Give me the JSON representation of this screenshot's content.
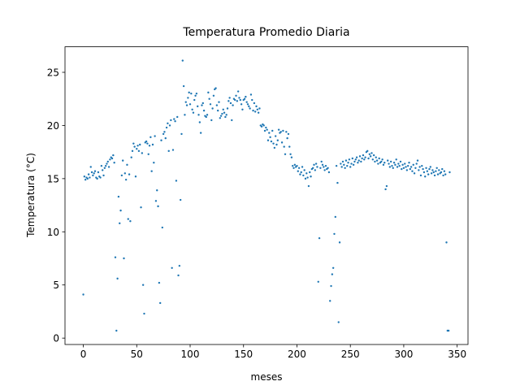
{
  "chart_data": {
    "type": "scatter",
    "title": "Temperatura Promedio Diaria",
    "xlabel": "meses",
    "ylabel": "Temperatura (°C)",
    "color": "#1f77b4",
    "xlim": [
      -17.15,
      360.15
    ],
    "ylim": [
      -0.6,
      27.4
    ],
    "xticks": [
      0,
      50,
      100,
      150,
      200,
      250,
      300,
      350
    ],
    "yticks": [
      0,
      5,
      10,
      15,
      20,
      25
    ],
    "x": [
      0,
      1,
      2,
      3,
      4,
      5,
      6,
      7,
      8,
      9,
      10,
      11,
      12,
      13,
      14,
      15,
      16,
      17,
      18,
      19,
      20,
      21,
      22,
      23,
      24,
      25,
      26,
      27,
      28,
      29,
      30,
      31,
      32,
      33,
      34,
      35,
      36,
      37,
      38,
      39,
      40,
      41,
      42,
      43,
      44,
      45,
      46,
      47,
      48,
      49,
      50,
      51,
      52,
      53,
      54,
      55,
      56,
      57,
      58,
      59,
      60,
      61,
      62,
      63,
      64,
      65,
      66,
      67,
      68,
      69,
      70,
      71,
      72,
      73,
      74,
      75,
      76,
      77,
      78,
      79,
      80,
      81,
      82,
      83,
      84,
      85,
      86,
      87,
      88,
      89,
      90,
      91,
      92,
      93,
      94,
      95,
      96,
      97,
      98,
      99,
      100,
      101,
      102,
      103,
      104,
      105,
      106,
      107,
      108,
      109,
      110,
      111,
      112,
      113,
      114,
      115,
      116,
      117,
      118,
      119,
      120,
      121,
      122,
      123,
      124,
      125,
      126,
      127,
      128,
      129,
      130,
      131,
      132,
      133,
      134,
      135,
      136,
      137,
      138,
      139,
      140,
      141,
      142,
      143,
      144,
      145,
      146,
      147,
      148,
      149,
      150,
      151,
      152,
      153,
      154,
      155,
      156,
      157,
      158,
      159,
      160,
      161,
      162,
      163,
      164,
      165,
      166,
      167,
      168,
      169,
      170,
      171,
      172,
      173,
      174,
      175,
      176,
      177,
      178,
      179,
      180,
      181,
      182,
      183,
      184,
      185,
      186,
      187,
      188,
      189,
      190,
      191,
      192,
      193,
      194,
      195,
      196,
      197,
      198,
      199,
      200,
      201,
      202,
      203,
      204,
      205,
      206,
      207,
      208,
      209,
      210,
      211,
      212,
      213,
      214,
      215,
      216,
      217,
      218,
      219,
      220,
      221,
      222,
      223,
      224,
      225,
      226,
      227,
      228,
      229,
      230,
      231,
      232,
      233,
      234,
      235,
      236,
      237,
      238,
      239,
      240,
      241,
      242,
      243,
      244,
      245,
      246,
      247,
      248,
      249,
      250,
      251,
      252,
      253,
      254,
      255,
      256,
      257,
      258,
      259,
      260,
      261,
      262,
      263,
      264,
      265,
      266,
      267,
      268,
      269,
      270,
      271,
      272,
      273,
      274,
      275,
      276,
      277,
      278,
      279,
      280,
      281,
      282,
      283,
      284,
      285,
      286,
      287,
      288,
      289,
      290,
      291,
      292,
      293,
      294,
      295,
      296,
      297,
      298,
      299,
      300,
      301,
      302,
      303,
      304,
      305,
      306,
      307,
      308,
      309,
      310,
      311,
      312,
      313,
      314,
      315,
      316,
      317,
      318,
      319,
      320,
      321,
      322,
      323,
      324,
      325,
      326,
      327,
      328,
      329,
      330,
      331,
      332,
      333,
      334,
      335,
      336,
      337,
      338,
      339,
      340,
      341,
      342,
      343
    ],
    "values": [
      4.1,
      15.2,
      14.9,
      15.1,
      15.0,
      15.4,
      15.1,
      16.1,
      15.6,
      15.3,
      15.5,
      15.7,
      15.1,
      15.0,
      15.6,
      15.2,
      15.1,
      16.2,
      15.8,
      15.3,
      16.0,
      16.2,
      16.4,
      16.6,
      16.1,
      16.8,
      17.0,
      16.9,
      17.2,
      16.5,
      7.6,
      0.7,
      5.6,
      13.3,
      10.8,
      12.0,
      15.3,
      16.7,
      7.5,
      15.5,
      14.9,
      16.3,
      11.2,
      15.4,
      11.0,
      17.0,
      17.6,
      18.3,
      18.0,
      15.2,
      17.8,
      18.1,
      17.6,
      18.2,
      12.3,
      17.4,
      5.0,
      2.3,
      18.4,
      18.5,
      18.3,
      17.3,
      18.1,
      18.9,
      15.7,
      18.2,
      16.5,
      19.0,
      12.9,
      13.9,
      12.4,
      5.2,
      3.3,
      18.6,
      10.4,
      19.2,
      19.4,
      18.8,
      19.8,
      20.2,
      17.6,
      20.0,
      20.5,
      6.6,
      17.7,
      20.6,
      20.4,
      14.8,
      20.8,
      5.9,
      6.8,
      13.0,
      19.2,
      26.1,
      23.7,
      21.0,
      22.2,
      21.9,
      22.6,
      23.1,
      22.0,
      23.0,
      21.5,
      21.2,
      22.4,
      22.8,
      23.0,
      21.8,
      21.0,
      20.3,
      19.3,
      21.9,
      22.1,
      21.4,
      20.9,
      20.8,
      21.0,
      23.1,
      22.5,
      22.0,
      20.5,
      21.6,
      22.8,
      23.4,
      23.5,
      21.9,
      21.4,
      22.2,
      20.7,
      20.9,
      21.1,
      21.5,
      21.2,
      20.8,
      21.0,
      21.6,
      22.3,
      22.6,
      22.1,
      20.5,
      21.9,
      22.5,
      22.4,
      22.8,
      22.3,
      23.2,
      22.6,
      22.4,
      22.0,
      21.5,
      22.4,
      22.5,
      22.7,
      22.2,
      22.0,
      21.8,
      21.6,
      22.9,
      22.4,
      21.4,
      22.1,
      21.3,
      21.8,
      21.5,
      21.2,
      21.6,
      20.0,
      19.9,
      20.1,
      20.0,
      19.5,
      19.8,
      19.6,
      18.6,
      19.3,
      18.9,
      18.5,
      19.5,
      18.3,
      17.9,
      19.0,
      18.2,
      18.6,
      19.6,
      19.3,
      19.4,
      18.4,
      19.5,
      18.0,
      17.3,
      19.4,
      18.8,
      19.2,
      18.0,
      17.3,
      17.0,
      16.2,
      16.0,
      16.3,
      16.1,
      16.2,
      15.7,
      16.0,
      15.4,
      15.6,
      16.1,
      15.3,
      15.8,
      15.0,
      15.5,
      15.1,
      14.3,
      15.6,
      15.2,
      15.9,
      16.0,
      16.3,
      15.8,
      16.4,
      16.1,
      5.3,
      9.4,
      16.0,
      16.6,
      16.3,
      16.1,
      15.8,
      16.2,
      15.9,
      16.0,
      15.6,
      3.5,
      4.9,
      6.0,
      6.6,
      9.8,
      11.4,
      16.2,
      14.6,
      1.5,
      9.0,
      16.4,
      16.1,
      16.6,
      16.3,
      16.0,
      16.7,
      16.2,
      16.5,
      16.8,
      16.1,
      16.4,
      16.9,
      16.3,
      16.6,
      16.8,
      17.0,
      16.5,
      16.7,
      17.1,
      16.6,
      16.9,
      17.2,
      16.8,
      17.0,
      17.5,
      17.6,
      16.9,
      17.3,
      17.1,
      17.4,
      16.8,
      17.2,
      16.6,
      17.0,
      16.7,
      16.4,
      16.9,
      16.5,
      16.6,
      16.8,
      16.3,
      16.5,
      14.0,
      14.3,
      16.7,
      16.4,
      16.1,
      16.6,
      16.2,
      16.0,
      16.5,
      16.3,
      16.8,
      16.1,
      16.4,
      16.2,
      16.6,
      15.9,
      16.3,
      16.0,
      16.4,
      16.1,
      15.8,
      16.2,
      16.5,
      15.9,
      16.1,
      15.7,
      16.3,
      15.5,
      16.0,
      16.4,
      16.7,
      15.8,
      16.1,
      15.3,
      16.2,
      15.9,
      15.6,
      15.2,
      16.0,
      15.7,
      15.4,
      15.9,
      16.1,
      15.5,
      15.8,
      15.6,
      15.3,
      15.7,
      16.0,
      15.4,
      15.8,
      15.5,
      15.6,
      15.9,
      15.3,
      15.7,
      15.4,
      9.0,
      0.7,
      0.7,
      15.6
    ]
  }
}
